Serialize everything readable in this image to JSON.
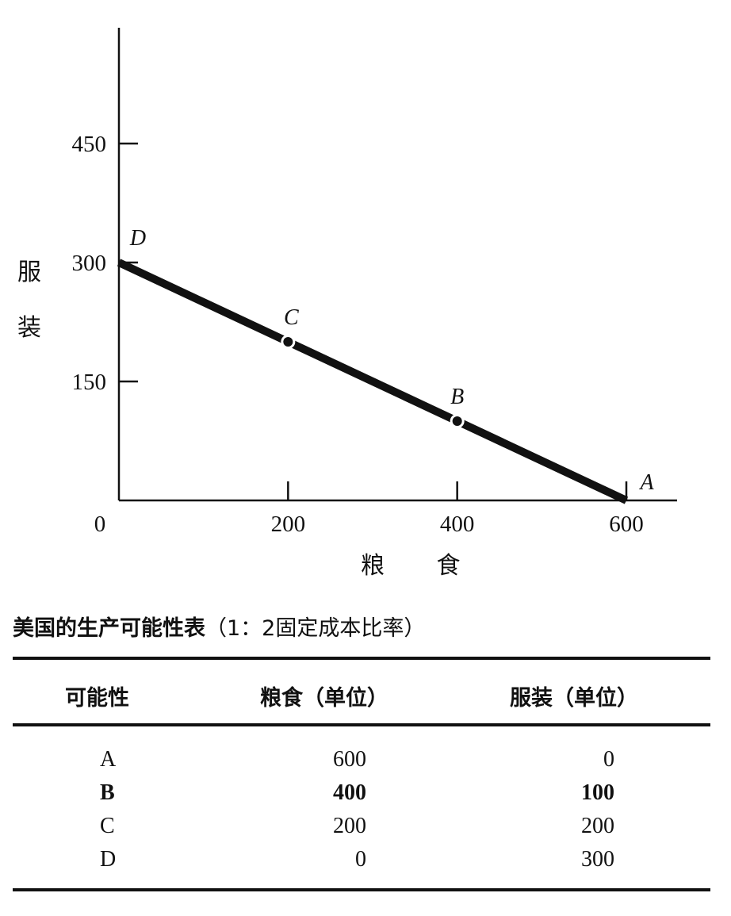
{
  "chart_data": {
    "type": "line",
    "xlabel": "粮 食",
    "ylabel": "服装",
    "xlim": [
      0,
      660
    ],
    "ylim": [
      0,
      630
    ],
    "x_ticks": [
      200,
      400,
      600
    ],
    "y_ticks": [
      150,
      300,
      450
    ],
    "origin_label": "0",
    "series": [
      {
        "points": [
          {
            "label": "D",
            "x": 0,
            "y": 300
          },
          {
            "label": "C",
            "x": 200,
            "y": 200
          },
          {
            "label": "B",
            "x": 400,
            "y": 100
          },
          {
            "label": "A",
            "x": 600,
            "y": 0
          }
        ]
      }
    ],
    "grid": false
  },
  "table": {
    "title_bold": "美国的生产可能性表",
    "title_rest": "（1：2固定成本比率）",
    "headers": [
      "可能性",
      "粮食（单位）",
      "服装（单位）"
    ],
    "rows": [
      {
        "label": "A",
        "food": "600",
        "clothing": "0",
        "bold": false
      },
      {
        "label": "B",
        "food": "400",
        "clothing": "100",
        "bold": true
      },
      {
        "label": "C",
        "food": "200",
        "clothing": "200",
        "bold": false
      },
      {
        "label": "D",
        "food": "0",
        "clothing": "300",
        "bold": false
      }
    ]
  }
}
